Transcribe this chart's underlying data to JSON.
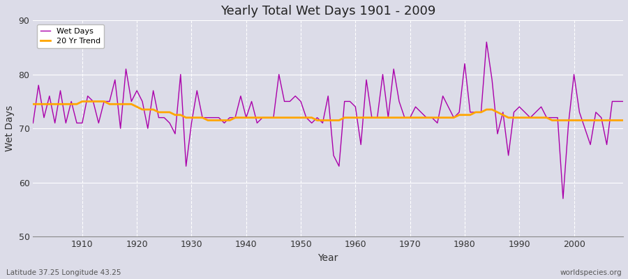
{
  "title": "Yearly Total Wet Days 1901 - 2009",
  "xlabel": "Year",
  "ylabel": "Wet Days",
  "footer_left": "Latitude 37.25 Longitude 43.25",
  "footer_right": "worldspecies.org",
  "line_color": "#aa00aa",
  "trend_color": "#FFA500",
  "bg_color": "#dcdce8",
  "plot_bg_color": "#dcdce8",
  "ylim": [
    50,
    90
  ],
  "xlim": [
    1901,
    2009
  ],
  "yticks": [
    50,
    60,
    70,
    80,
    90
  ],
  "xticks": [
    1910,
    1920,
    1930,
    1940,
    1950,
    1960,
    1970,
    1980,
    1990,
    2000
  ],
  "wet_days": {
    "1901": 71,
    "1902": 78,
    "1903": 72,
    "1904": 76,
    "1905": 71,
    "1906": 77,
    "1907": 71,
    "1908": 75,
    "1909": 71,
    "1910": 71,
    "1911": 76,
    "1912": 75,
    "1913": 71,
    "1914": 75,
    "1915": 75,
    "1916": 79,
    "1917": 70,
    "1918": 81,
    "1919": 75,
    "1920": 77,
    "1921": 75,
    "1922": 70,
    "1923": 77,
    "1924": 72,
    "1925": 72,
    "1926": 71,
    "1927": 69,
    "1928": 80,
    "1929": 63,
    "1930": 71,
    "1931": 77,
    "1932": 72,
    "1933": 72,
    "1934": 72,
    "1935": 72,
    "1936": 71,
    "1937": 72,
    "1938": 72,
    "1939": 76,
    "1940": 72,
    "1941": 75,
    "1942": 71,
    "1943": 72,
    "1944": 72,
    "1945": 72,
    "1946": 80,
    "1947": 75,
    "1948": 75,
    "1949": 76,
    "1950": 75,
    "1951": 72,
    "1952": 71,
    "1953": 72,
    "1954": 71,
    "1955": 76,
    "1956": 65,
    "1957": 63,
    "1958": 75,
    "1959": 75,
    "1960": 74,
    "1961": 67,
    "1962": 79,
    "1963": 72,
    "1964": 72,
    "1965": 80,
    "1966": 72,
    "1967": 81,
    "1968": 75,
    "1969": 72,
    "1970": 72,
    "1971": 74,
    "1972": 73,
    "1973": 72,
    "1974": 72,
    "1975": 71,
    "1976": 76,
    "1977": 74,
    "1978": 72,
    "1979": 73,
    "1980": 82,
    "1981": 73,
    "1982": 73,
    "1983": 73,
    "1984": 86,
    "1985": 79,
    "1986": 69,
    "1987": 73,
    "1988": 65,
    "1989": 73,
    "1990": 74,
    "1991": 73,
    "1992": 72,
    "1993": 73,
    "1994": 74,
    "1995": 72,
    "1996": 72,
    "1997": 72,
    "1998": 57,
    "1999": 71,
    "2000": 80,
    "2001": 73,
    "2002": 70,
    "2003": 67,
    "2004": 73,
    "2005": 72,
    "2006": 67,
    "2007": 75,
    "2008": 75,
    "2009": 75
  },
  "trend": {
    "1901": 74.5,
    "1902": 74.5,
    "1903": 74.5,
    "1904": 74.5,
    "1905": 74.5,
    "1906": 74.5,
    "1907": 74.5,
    "1908": 74.5,
    "1909": 74.5,
    "1910": 75.0,
    "1911": 75.0,
    "1912": 75.0,
    "1913": 75.0,
    "1914": 75.0,
    "1915": 74.5,
    "1916": 74.5,
    "1917": 74.5,
    "1918": 74.5,
    "1919": 74.5,
    "1920": 74.0,
    "1921": 73.5,
    "1922": 73.5,
    "1923": 73.5,
    "1924": 73.0,
    "1925": 73.0,
    "1926": 73.0,
    "1927": 72.5,
    "1928": 72.5,
    "1929": 72.0,
    "1930": 72.0,
    "1931": 72.0,
    "1932": 72.0,
    "1933": 71.5,
    "1934": 71.5,
    "1935": 71.5,
    "1936": 71.5,
    "1937": 71.5,
    "1938": 72.0,
    "1939": 72.0,
    "1940": 72.0,
    "1941": 72.0,
    "1942": 72.0,
    "1943": 72.0,
    "1944": 72.0,
    "1945": 72.0,
    "1946": 72.0,
    "1947": 72.0,
    "1948": 72.0,
    "1949": 72.0,
    "1950": 72.0,
    "1951": 72.0,
    "1952": 72.0,
    "1953": 71.5,
    "1954": 71.5,
    "1955": 71.5,
    "1956": 71.5,
    "1957": 71.5,
    "1958": 72.0,
    "1959": 72.0,
    "1960": 72.0,
    "1961": 72.0,
    "1962": 72.0,
    "1963": 72.0,
    "1964": 72.0,
    "1965": 72.0,
    "1966": 72.0,
    "1967": 72.0,
    "1968": 72.0,
    "1969": 72.0,
    "1970": 72.0,
    "1971": 72.0,
    "1972": 72.0,
    "1973": 72.0,
    "1974": 72.0,
    "1975": 72.0,
    "1976": 72.0,
    "1977": 72.0,
    "1978": 72.0,
    "1979": 72.5,
    "1980": 72.5,
    "1981": 72.5,
    "1982": 73.0,
    "1983": 73.0,
    "1984": 73.5,
    "1985": 73.5,
    "1986": 73.0,
    "1987": 72.5,
    "1988": 72.0,
    "1989": 72.0,
    "1990": 72.0,
    "1991": 72.0,
    "1992": 72.0,
    "1993": 72.0,
    "1994": 72.0,
    "1995": 72.0,
    "1996": 71.5,
    "1997": 71.5,
    "1998": 71.5,
    "1999": 71.5,
    "2000": 71.5,
    "2001": 71.5,
    "2002": 71.5,
    "2003": 71.5,
    "2004": 71.5,
    "2005": 71.5,
    "2006": 71.5,
    "2007": 71.5,
    "2008": 71.5,
    "2009": 71.5
  }
}
